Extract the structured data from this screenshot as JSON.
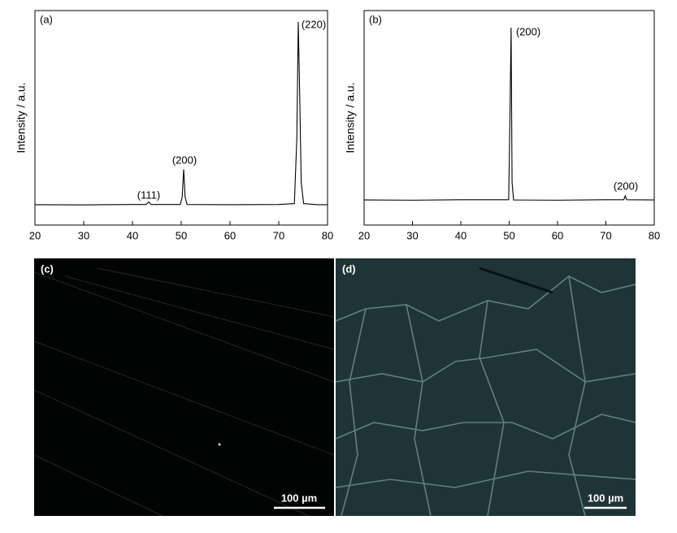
{
  "chart_data": [
    {
      "type": "line",
      "panel_label": "(a)",
      "y_label": "Intensity / a.u.",
      "x": [
        20,
        30,
        40,
        42.8,
        43.3,
        43.8,
        49.8,
        50.2,
        50.5,
        50.8,
        51.2,
        60,
        70,
        73.2,
        73.7,
        74.0,
        74.3,
        74.6,
        75.1,
        78,
        80
      ],
      "values": [
        9.5,
        9.4,
        9.6,
        9.6,
        10.8,
        9.6,
        9.6,
        13,
        26,
        13,
        9.6,
        9.5,
        9.6,
        10,
        40,
        94.7,
        60,
        20,
        10,
        9.5,
        9.5
      ],
      "color": "#000000",
      "xlim": [
        20,
        80
      ],
      "ylim": [
        0,
        100
      ],
      "xticks": [
        20,
        30,
        40,
        50,
        60,
        70,
        80
      ],
      "annotations": [
        "(111)",
        "(200)",
        "(220)"
      ]
    },
    {
      "type": "line",
      "panel_label": "(b)",
      "y_label": "Intensity / a.u.",
      "x": [
        20,
        30,
        40,
        49.9,
        50.2,
        50.4,
        50.6,
        50.9,
        60,
        70,
        73.7,
        74.0,
        74.3,
        80
      ],
      "values": [
        11.7,
        11.6,
        11.8,
        11.8,
        57,
        92,
        20,
        11.7,
        11.6,
        11.8,
        11.8,
        13.6,
        11.8,
        11.7
      ],
      "color": "#000000",
      "xlim": [
        20,
        80
      ],
      "ylim": [
        0,
        100
      ],
      "xticks": [
        20,
        30,
        40,
        50,
        60,
        70,
        80
      ],
      "annotations": [
        "(200)",
        "(200)"
      ]
    }
  ],
  "images": [
    {
      "label": "(c)",
      "scale_bar": "100 µm"
    },
    {
      "label": "(d)",
      "scale_bar": "100 µm"
    }
  ]
}
